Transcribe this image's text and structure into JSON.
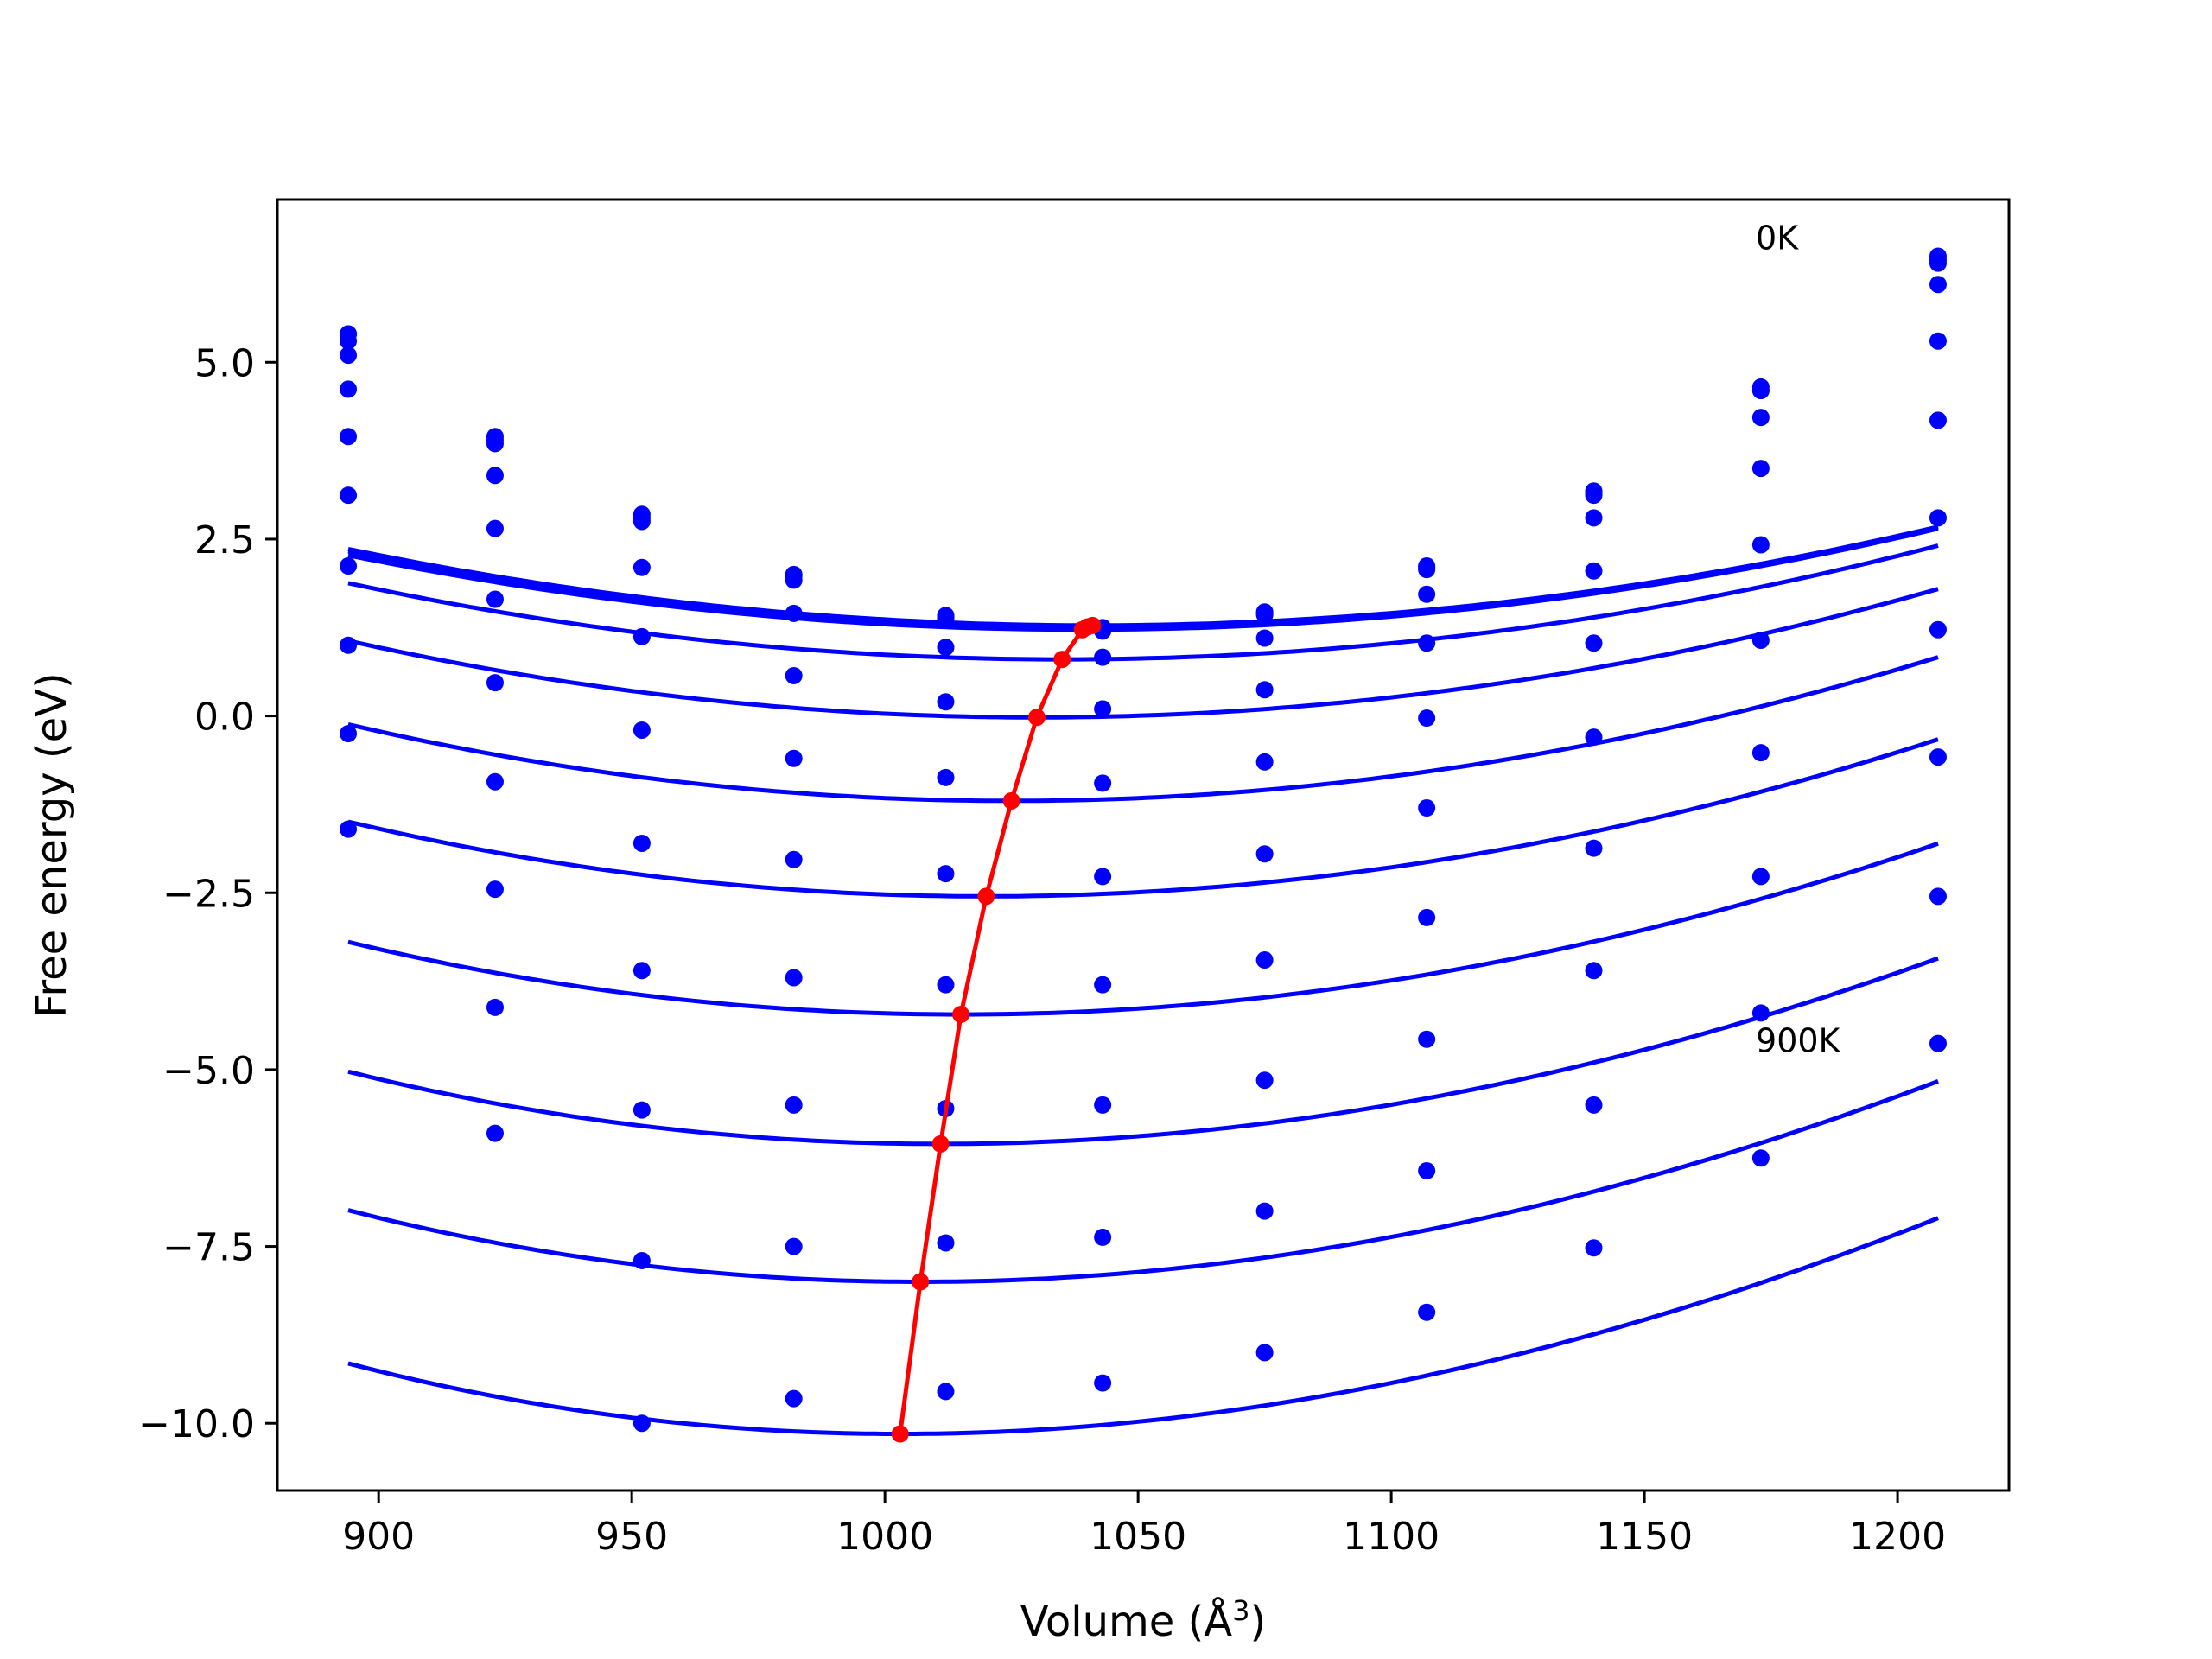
{
  "chart_data": {
    "type": "scatter",
    "title": "",
    "xlabel": "Volume (Å",
    "xlabel_sup": "3",
    "xlabel_suffix": ")",
    "ylabel": "Free energy (eV)",
    "xlim": [
      880,
      1222
    ],
    "ylim": [
      -10.95,
      7.3
    ],
    "xticks": [
      900,
      950,
      1000,
      1050,
      1100,
      1150,
      1200
    ],
    "xtick_labels": [
      "900",
      "950",
      "1000",
      "1050",
      "1100",
      "1150",
      "1200"
    ],
    "yticks": [
      5.0,
      2.5,
      0.0,
      -2.5,
      -5.0,
      -7.5,
      -10.0
    ],
    "ytick_labels": [
      "5.0",
      "2.5",
      "0.0",
      "−2.5",
      "−5.0",
      "−7.5",
      "−10.0"
    ],
    "grid": false,
    "legend": "none",
    "annotations": [
      {
        "text": "0K",
        "x": 1172,
        "y": 6.6
      },
      {
        "text": "900K",
        "x": 1172,
        "y": -4.75
      }
    ],
    "colors": {
      "series": "#0000ff",
      "equilibrium": "#ff0000",
      "axes": "#000000"
    },
    "x": [
      894,
      923,
      952,
      982,
      1012,
      1043,
      1075,
      1107,
      1140,
      1173,
      1208
    ],
    "series": [
      {
        "points": [
          5.4,
          3.95,
          2.85,
          2.0,
          1.42,
          1.25,
          1.47,
          2.12,
          3.18,
          4.65,
          6.5
        ],
        "fit": {
          "vmin": 1041,
          "fmin": 1.28,
          "a": 5e-05,
          "b": 0.0
        }
      },
      {
        "points": [
          5.4,
          3.9,
          2.8,
          1.98,
          1.4,
          1.24,
          1.45,
          2.1,
          3.15,
          4.6,
          6.45
        ],
        "fit": {
          "vmin": 1040,
          "fmin": 1.26,
          "a": 5e-05,
          "b": 0.0
        }
      },
      {
        "points": [
          5.3,
          3.85,
          2.75,
          1.92,
          1.38,
          1.2,
          1.43,
          2.07,
          3.12,
          4.6,
          6.4
        ],
        "fit": {
          "vmin": 1039,
          "fmin": 1.22,
          "a": 5e-05,
          "b": 0.0
        }
      },
      {
        "points": [
          5.1,
          3.4,
          2.1,
          1.45,
          0.97,
          0.83,
          1.1,
          1.72,
          2.8,
          4.22,
          6.1
        ],
        "fit": {
          "vmin": 1035,
          "fmin": 0.8,
          "a": 5.4e-05,
          "b": -0.003
        }
      },
      {
        "points": [
          4.62,
          2.65,
          1.12,
          0.57,
          0.2,
          0.1,
          0.37,
          1.03,
          2.05,
          3.5,
          5.3
        ],
        "fit": {
          "vmin": 1030,
          "fmin": -0.02,
          "a": 5.8e-05,
          "b": -0.007
        }
      },
      {
        "points": [
          3.95,
          1.65,
          -0.2,
          -0.6,
          -0.87,
          -0.95,
          -0.65,
          -0.03,
          1.03,
          2.42,
          4.18
        ],
        "fit": {
          "vmin": 1025,
          "fmin": -1.2,
          "a": 6.2e-05,
          "b": -0.012
        }
      },
      {
        "points": [
          3.12,
          0.47,
          -1.8,
          -2.03,
          -2.23,
          -2.27,
          -1.95,
          -1.3,
          -0.3,
          1.07,
          2.8
        ],
        "fit": {
          "vmin": 1020,
          "fmin": -2.55,
          "a": 6.5e-05,
          "b": -0.018
        }
      },
      {
        "points": [
          2.12,
          -0.93,
          -3.6,
          -3.7,
          -3.8,
          -3.8,
          -3.45,
          -2.85,
          -1.87,
          -0.52,
          1.22
        ],
        "fit": {
          "vmin": 1015,
          "fmin": -4.22,
          "a": 6.8e-05,
          "b": -0.024
        }
      },
      {
        "points": [
          1.0,
          -2.45,
          -5.57,
          -5.5,
          -5.55,
          -5.5,
          -5.15,
          -4.57,
          -3.6,
          -2.27,
          -0.58
        ],
        "fit": {
          "vmin": 1011,
          "fmin": -6.05,
          "a": 7.2e-05,
          "b": -0.031
        }
      },
      {
        "points": [
          -0.25,
          -4.12,
          -7.7,
          -7.5,
          -7.45,
          -7.37,
          -7.0,
          -6.43,
          -5.5,
          -4.2,
          -2.55
        ],
        "fit": {
          "vmin": 1007,
          "fmin": -8.0,
          "a": 7.6e-05,
          "b": -0.038
        }
      },
      {
        "points": [
          -1.6,
          -5.9,
          -10.0,
          -9.65,
          -9.55,
          -9.43,
          -9.0,
          -8.43,
          -7.52,
          -6.25,
          -4.63
        ],
        "fit": {
          "vmin": 1003,
          "fmin": -10.15,
          "a": 8e-05,
          "b": -0.045
        }
      }
    ],
    "equilibrium": {
      "x": [
        1003,
        1007,
        1011,
        1015,
        1020,
        1025,
        1030,
        1035,
        1039,
        1040,
        1041
      ],
      "y": [
        -10.15,
        -8.0,
        -6.05,
        -4.22,
        -2.55,
        -1.2,
        -0.02,
        0.8,
        1.22,
        1.26,
        1.28
      ]
    }
  }
}
